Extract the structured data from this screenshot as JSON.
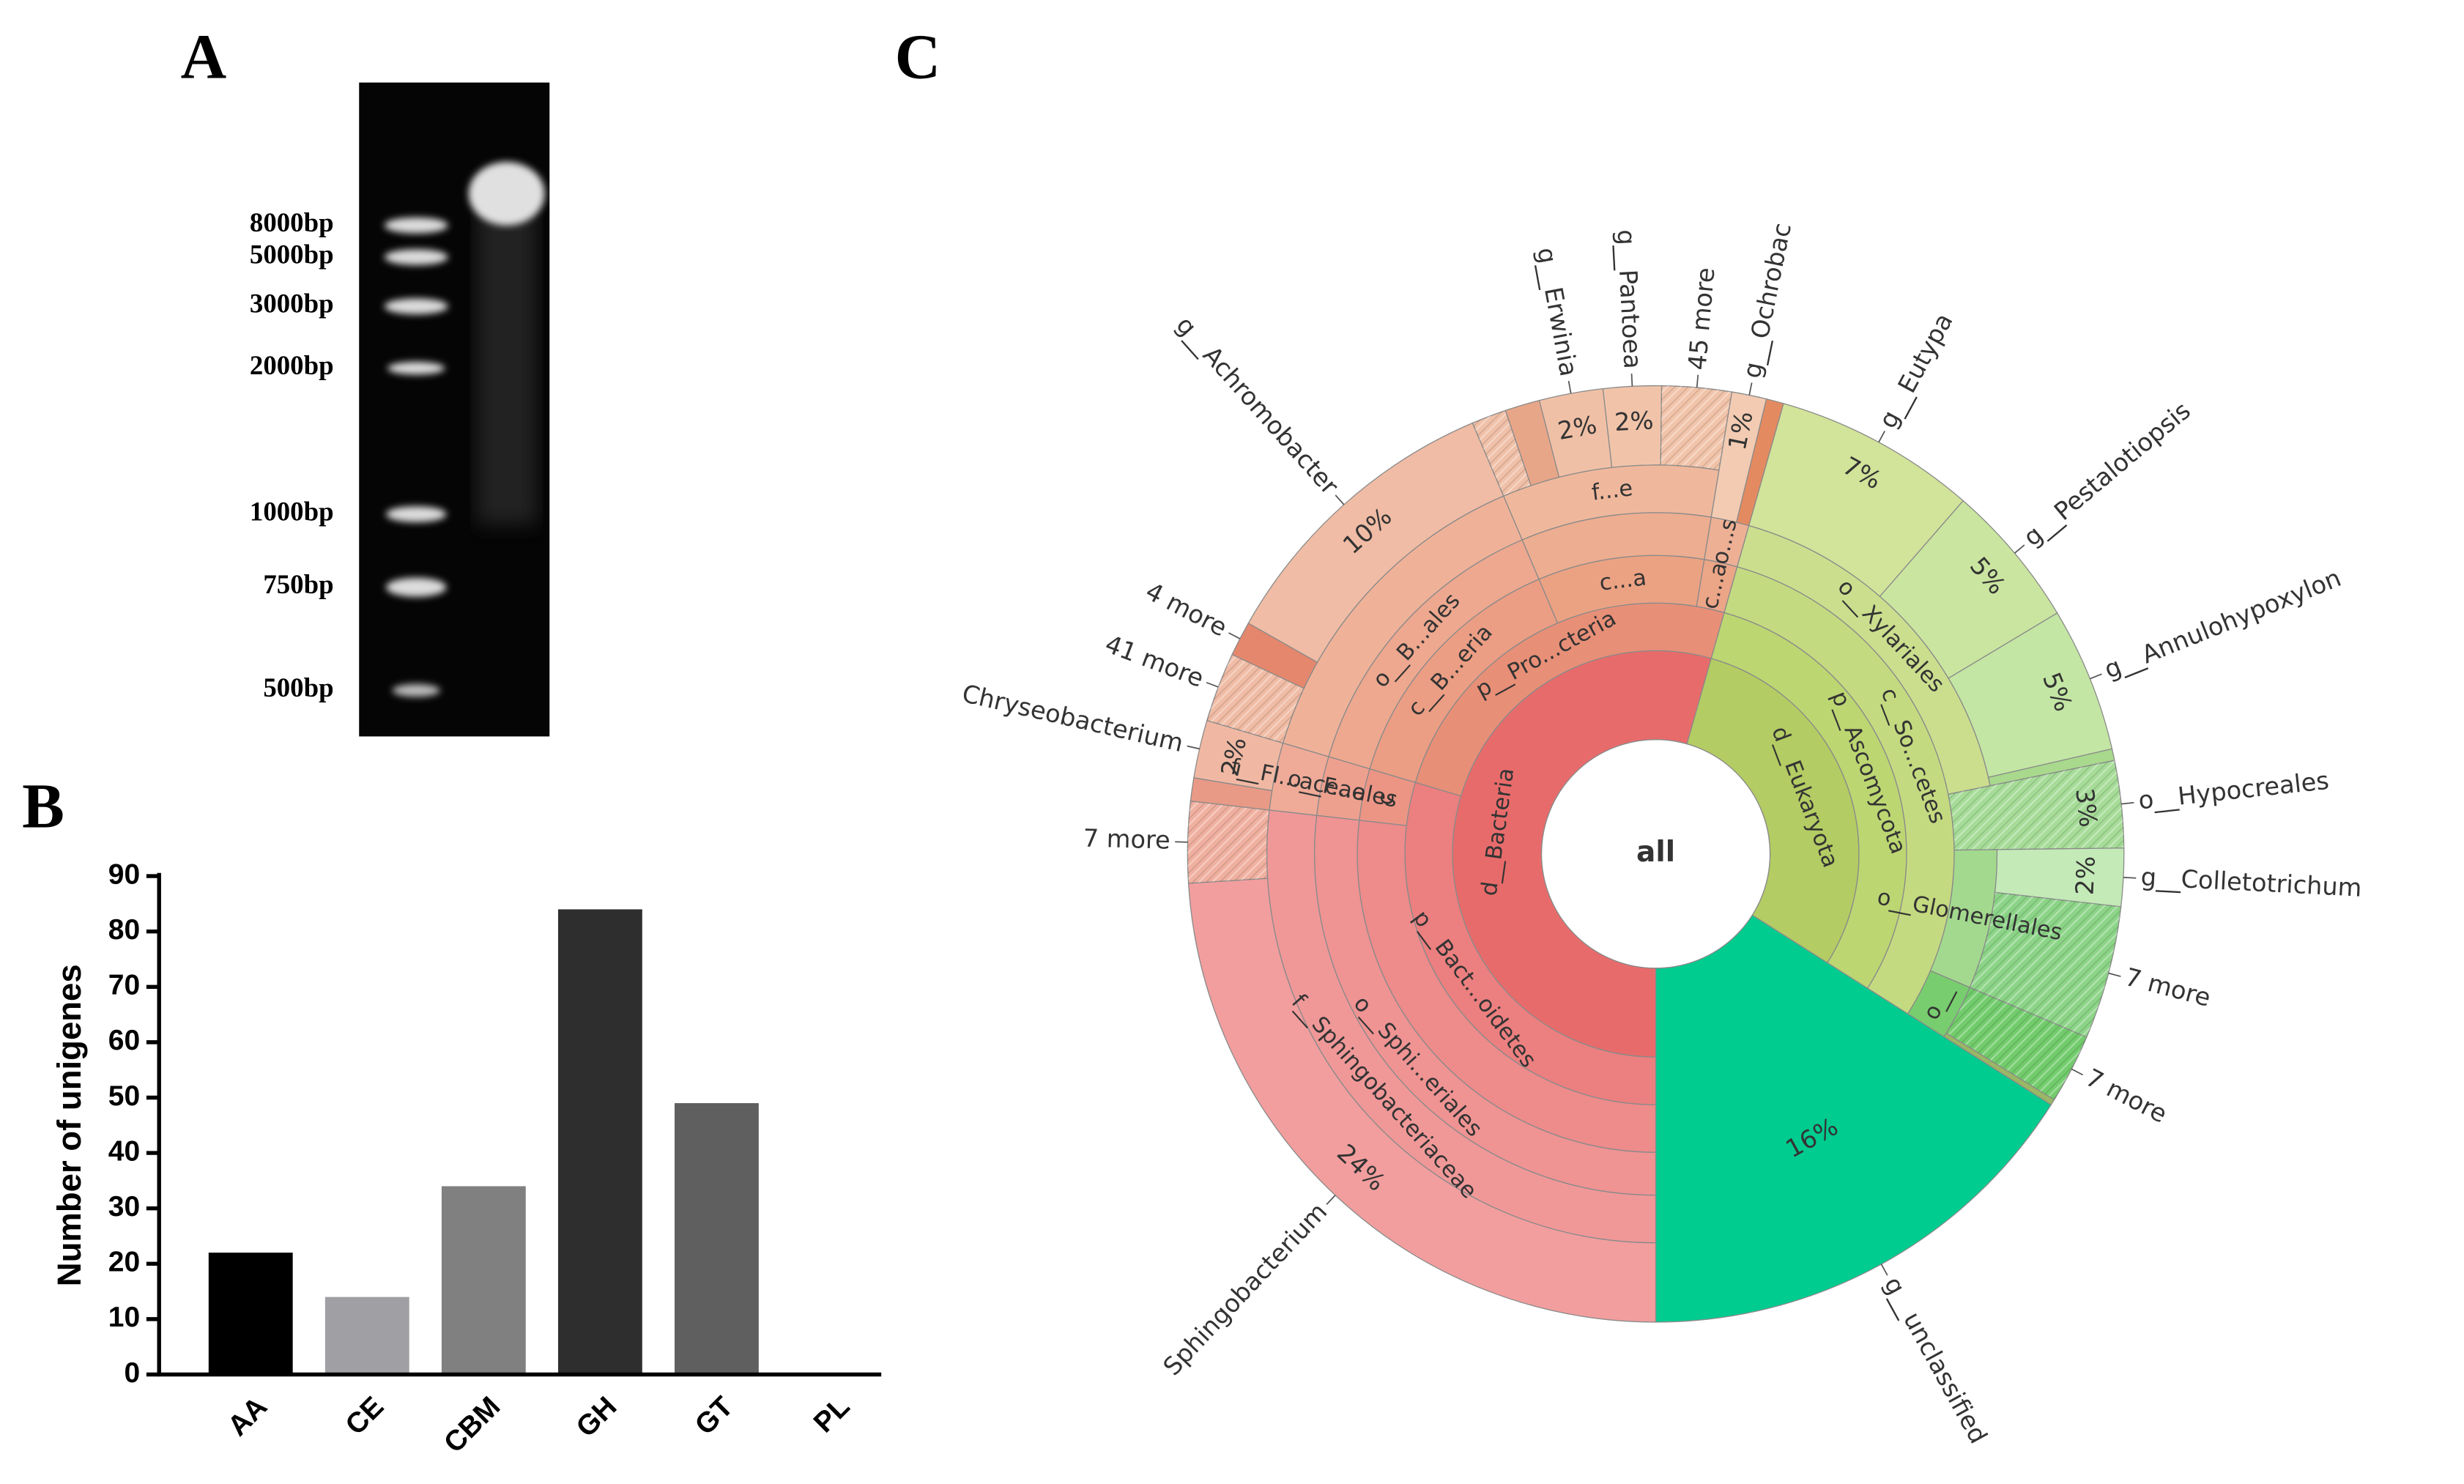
{
  "panels": [
    "A",
    "B",
    "C"
  ],
  "gel": {
    "ladder": [
      "8000bp",
      "5000bp",
      "3000bp",
      "2000bp",
      "1000bp",
      "750bp",
      "500bp"
    ]
  },
  "chart_data": [
    {
      "type": "bar",
      "categories": [
        "AA",
        "CE",
        "CBM",
        "GH",
        "GT",
        "PL"
      ],
      "values": [
        22,
        14,
        34,
        84,
        49,
        0
      ],
      "colors": [
        "#000000",
        "#a0a0a4",
        "#808080",
        "#2e2e2e",
        "#5f5f5f",
        "#5f5f5f"
      ],
      "ylabel": "Number of unigenes",
      "ylim": [
        0,
        90
      ],
      "yticks": [
        0,
        10,
        20,
        30,
        40,
        50,
        60,
        70,
        80,
        90
      ]
    },
    {
      "type": "sunburst",
      "root": {
        "name": "all",
        "children": [
          {
            "name": "d__Bacteria",
            "color": "#e86b6b",
            "children": [
              {
                "name": "p__Bact...oidetes",
                "color": "#ec7f7f",
                "children": [
                  {
                    "name": null,
                    "color": "#ee8b8b",
                    "children": [
                      {
                        "name": "o__Sphi...eriales",
                        "color": "#ef9393",
                        "children": [
                          {
                            "name": "f__Sphingobacteriaceae",
                            "color": "#f09898",
                            "children": [
                              {
                                "name": "Sphingobacterium",
                                "value": 24,
                                "value_label": "24%",
                                "color": "#f29e9e"
                              },
                              {
                                "name": "7 more",
                                "value": 2.8,
                                "color": "#f0b0a0",
                                "hatch": true
                              }
                            ]
                          }
                        ]
                      }
                    ]
                  },
                  {
                    "name": "c",
                    "color": "#ec9585",
                    "children": [
                      {
                        "name": "o__F...ales",
                        "color": "#eea08e",
                        "children": [
                          {
                            "name": "f__Fl...aceae",
                            "color": "#efab98",
                            "children": [
                              {
                                "name": null,
                                "value": 0.8,
                                "color": "#e89a86"
                              },
                              {
                                "name": "Chryseobacterium",
                                "value": 2,
                                "value_label": "2%",
                                "color": "#f0b8a3"
                              }
                            ]
                          }
                        ]
                      }
                    ]
                  }
                ]
              },
              {
                "name": "p__Pro...cteria",
                "color": "#e88f77",
                "children": [
                  {
                    "name": "c__B...eria",
                    "color": "#eb9e84",
                    "children": [
                      {
                        "name": "o__B...ales",
                        "color": "#eda88f",
                        "children": [
                          {
                            "name": null,
                            "color": "#efb299",
                            "children": [
                              {
                                "name": "41 more",
                                "value": 2.4,
                                "color": "#f0bca5",
                                "hatch": true
                              },
                              {
                                "name": "4 more",
                                "value": 1.2,
                                "color": "#e4876c"
                              },
                              {
                                "name": "g__Achromobacter",
                                "value": 10.4,
                                "value_label": "10%",
                                "color": "#f0bca5"
                              }
                            ]
                          }
                        ]
                      }
                    ]
                  },
                  {
                    "name": "c...a",
                    "color": "#eba283",
                    "children": [
                      {
                        "name": null,
                        "color": "#edad90",
                        "children": [
                          {
                            "name": "f...e",
                            "color": "#efb89c",
                            "children": [
                              {
                                "name": null,
                                "value": 1.2,
                                "color": "#f0c0a8",
                                "hatch": true
                              },
                              {
                                "name": null,
                                "value": 1.2,
                                "color": "#e8a688"
                              },
                              {
                                "name": "g__Erwinia",
                                "value": 2.2,
                                "value_label": "2%",
                                "color": "#f0c0a6"
                              },
                              {
                                "name": "g__Pantoea",
                                "value": 2,
                                "value_label": "2%",
                                "color": "#f1c4aa"
                              },
                              {
                                "name": "45 more",
                                "value": 2.4,
                                "color": "#f1c4aa",
                                "hatch": true
                              }
                            ]
                          }
                        ]
                      }
                    ]
                  },
                  {
                    "name": "c...a",
                    "color": "#eba587",
                    "children": [
                      {
                        "name": "o...s",
                        "color": "#edb095",
                        "children": [
                          {
                            "name": "g__Ochrobac",
                            "value": 1.2,
                            "value_label": "1%",
                            "color": "#f2cbb2"
                          },
                          {
                            "name": null,
                            "value": 0.6,
                            "color": "#e48a60"
                          }
                        ]
                      }
                    ]
                  }
                ]
              }
            ]
          },
          {
            "name": "d__Eukaryota",
            "color": "#b3cc63",
            "children": [
              {
                "name": "p__Ascomycota",
                "color": "#bcd672",
                "children": [
                  {
                    "name": "c__So...cetes",
                    "color": "#c4da80",
                    "children": [
                      {
                        "name": "o__Xylariales",
                        "color": "#cbde8e",
                        "children": [
                          {
                            "name": "g__Eutypa",
                            "value": 7,
                            "value_label": "7%",
                            "color": "#d2e39a"
                          },
                          {
                            "name": "g__Pestalotiopsis",
                            "value": 5,
                            "value_label": "5%",
                            "color": "#cae59f"
                          },
                          {
                            "name": "g__Annulohypoxylon",
                            "value": 5,
                            "value_label": "5%",
                            "color": "#c3e6a4"
                          },
                          {
                            "name": null,
                            "value": 0.4,
                            "color": "#a8d98c"
                          }
                        ]
                      },
                      {
                        "name": "o__Hypocreales",
                        "value": 3,
                        "value_label": "3%",
                        "color": "#a6dc98",
                        "hatch": true
                      },
                      {
                        "name": "o__Glomerellales",
                        "color": "#a3d98e",
                        "children": [
                          {
                            "name": "g__Colletotrichum",
                            "value": 2,
                            "value_label": "2%",
                            "color": "#c3eab7"
                          },
                          {
                            "name": "7 more",
                            "value": 4.6,
                            "color": "#8cd487",
                            "hatch": true
                          }
                        ]
                      },
                      {
                        "name": "o__",
                        "color": "#78cd6e",
                        "children": [
                          {
                            "name": "7 more",
                            "value": 2.4,
                            "color": "#72cc6c",
                            "hatch": true
                          },
                          {
                            "name": null,
                            "value": 0.2,
                            "color": "#9ab863"
                          }
                        ]
                      }
                    ]
                  }
                ]
              }
            ]
          },
          {
            "name": "g__unclassified",
            "value": 16,
            "value_label": "16%",
            "color": "#00cc90"
          }
        ]
      }
    }
  ]
}
